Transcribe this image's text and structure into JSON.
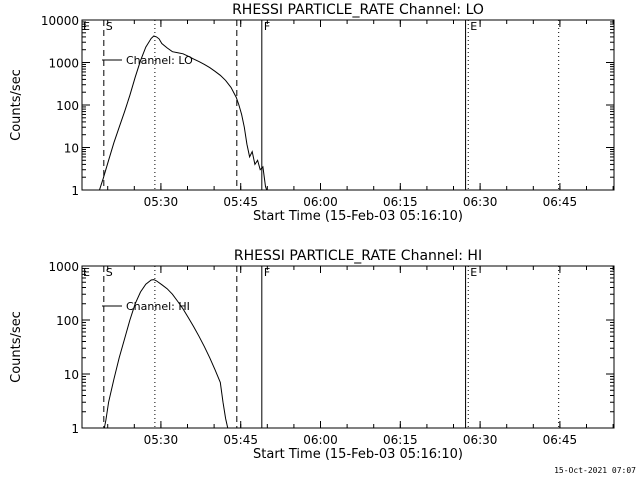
{
  "timestamp": "15-Oct-2021 07:07",
  "chart_data": [
    {
      "type": "line",
      "title": "RHESSI PARTICLE_RATE Channel: LO",
      "xlabel": "Start Time (15-Feb-03 05:16:10)",
      "ylabel": "Counts/sec",
      "xscale": "time (minutes since 05:16:10)",
      "yscale": "log",
      "xlim": [
        0,
        100
      ],
      "ylim": [
        1,
        10000
      ],
      "xticks": [
        {
          "x": 14.833,
          "label": "05:30"
        },
        {
          "x": 29.833,
          "label": "05:45"
        },
        {
          "x": 44.833,
          "label": "06:00"
        },
        {
          "x": 59.833,
          "label": "06:15"
        },
        {
          "x": 74.833,
          "label": "06:30"
        },
        {
          "x": 89.833,
          "label": "06:45"
        }
      ],
      "yticks": [
        {
          "y": 1,
          "label": "1"
        },
        {
          "y": 10,
          "label": "10"
        },
        {
          "y": 100,
          "label": "100"
        },
        {
          "y": 1000,
          "label": "1000"
        },
        {
          "y": 10000,
          "label": "10000"
        }
      ],
      "legend": {
        "label": "Channel: LO",
        "placement": "upper-left"
      },
      "series": [
        {
          "name": "Channel: LO",
          "points": [
            [
              3.1,
              0.85
            ],
            [
              4.0,
              1.9
            ],
            [
              5.0,
              5
            ],
            [
              6.0,
              13
            ],
            [
              7.0,
              30
            ],
            [
              8.0,
              70
            ],
            [
              9.0,
              170
            ],
            [
              10.0,
              450
            ],
            [
              11.0,
              1100
            ],
            [
              12.0,
              2300
            ],
            [
              13.0,
              3700
            ],
            [
              13.5,
              4200
            ],
            [
              14.0,
              4000
            ],
            [
              14.5,
              3600
            ],
            [
              15.0,
              2800
            ],
            [
              16.0,
              2200
            ],
            [
              17.0,
              1800
            ],
            [
              18.0,
              1700
            ],
            [
              19.0,
              1600
            ],
            [
              20.0,
              1400
            ],
            [
              21.0,
              1200
            ],
            [
              22.0,
              1050
            ],
            [
              23.0,
              900
            ],
            [
              24.0,
              760
            ],
            [
              25.0,
              620
            ],
            [
              26.0,
              500
            ],
            [
              27.0,
              380
            ],
            [
              28.0,
              260
            ],
            [
              29.0,
              150
            ],
            [
              29.5,
              100
            ],
            [
              30.0,
              60
            ],
            [
              30.5,
              30
            ],
            [
              31.0,
              12
            ],
            [
              31.5,
              6
            ],
            [
              32.0,
              8
            ],
            [
              32.5,
              4
            ],
            [
              33.0,
              5
            ],
            [
              33.5,
              3
            ],
            [
              34.0,
              3.5
            ],
            [
              34.5,
              1.2
            ],
            [
              35.0,
              0.8
            ]
          ]
        }
      ],
      "markers": [
        {
          "x": 4.1,
          "style": "dashed",
          "label": "S"
        },
        {
          "x": 13.7,
          "style": "dotted",
          "label": ""
        },
        {
          "x": 29.1,
          "style": "dashed",
          "label": ""
        },
        {
          "x": 33.8,
          "style": "solid",
          "label": "F"
        },
        {
          "x": 72.1,
          "style": "solid",
          "label": ""
        },
        {
          "x": 72.6,
          "style": "dotted",
          "label": "E"
        },
        {
          "x": 89.6,
          "style": "dotted",
          "label": ""
        }
      ],
      "corner_label": "E",
      "grid": false
    },
    {
      "type": "line",
      "title": "RHESSI PARTICLE_RATE Channel: HI",
      "xlabel": "Start Time (15-Feb-03 05:16:10)",
      "ylabel": "Counts/sec",
      "xscale": "time (minutes since 05:16:10)",
      "yscale": "log",
      "xlim": [
        0,
        100
      ],
      "ylim": [
        1,
        1000
      ],
      "xticks": [
        {
          "x": 14.833,
          "label": "05:30"
        },
        {
          "x": 29.833,
          "label": "05:45"
        },
        {
          "x": 44.833,
          "label": "06:00"
        },
        {
          "x": 59.833,
          "label": "06:15"
        },
        {
          "x": 74.833,
          "label": "06:30"
        },
        {
          "x": 89.833,
          "label": "06:45"
        }
      ],
      "yticks": [
        {
          "y": 1,
          "label": "1"
        },
        {
          "y": 10,
          "label": "10"
        },
        {
          "y": 100,
          "label": "100"
        },
        {
          "y": 1000,
          "label": "1000"
        }
      ],
      "legend": {
        "label": "Channel: HI",
        "placement": "upper-left"
      },
      "series": [
        {
          "name": "Channel: HI",
          "points": [
            [
              4.0,
              0.8
            ],
            [
              4.5,
              1.4
            ],
            [
              5.0,
              3
            ],
            [
              6.0,
              8
            ],
            [
              7.0,
              20
            ],
            [
              8.0,
              45
            ],
            [
              9.0,
              100
            ],
            [
              10.0,
              200
            ],
            [
              11.0,
              330
            ],
            [
              12.0,
              460
            ],
            [
              13.0,
              550
            ],
            [
              13.5,
              560
            ],
            [
              14.0,
              530
            ],
            [
              15.0,
              450
            ],
            [
              16.0,
              380
            ],
            [
              17.0,
              300
            ],
            [
              18.0,
              220
            ],
            [
              19.0,
              160
            ],
            [
              20.0,
              110
            ],
            [
              21.0,
              75
            ],
            [
              22.0,
              50
            ],
            [
              23.0,
              32
            ],
            [
              24.0,
              20
            ],
            [
              25.0,
              12
            ],
            [
              26.0,
              7
            ],
            [
              26.5,
              3
            ],
            [
              27.0,
              1.5
            ],
            [
              27.5,
              0.9
            ]
          ]
        }
      ],
      "markers": [
        {
          "x": 4.1,
          "style": "dashed",
          "label": "S"
        },
        {
          "x": 13.7,
          "style": "dotted",
          "label": ""
        },
        {
          "x": 29.1,
          "style": "dashed",
          "label": ""
        },
        {
          "x": 33.8,
          "style": "solid",
          "label": "F"
        },
        {
          "x": 72.1,
          "style": "solid",
          "label": ""
        },
        {
          "x": 72.6,
          "style": "dotted",
          "label": "E"
        },
        {
          "x": 89.6,
          "style": "dotted",
          "label": ""
        }
      ],
      "corner_label": "E",
      "grid": false
    }
  ]
}
